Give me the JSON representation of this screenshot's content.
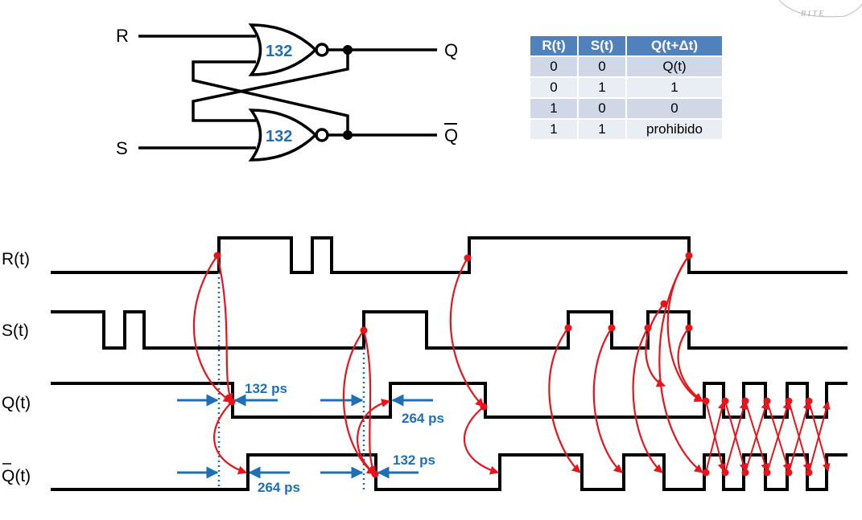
{
  "latch": {
    "input_r": "R",
    "input_s": "S",
    "output_q": "Q",
    "output_qbar": "Q",
    "gate_top_delay": "132",
    "gate_bottom_delay": "132"
  },
  "truth_table": {
    "headers": [
      "R(t)",
      "S(t)",
      "Q(t+Δt)"
    ],
    "rows": [
      [
        "0",
        "0",
        "Q(t)"
      ],
      [
        "0",
        "1",
        "1"
      ],
      [
        "1",
        "0",
        "0"
      ],
      [
        "1",
        "1",
        "prohibido"
      ]
    ]
  },
  "timing": {
    "signals": [
      "R(t)",
      "S(t)",
      "Q(t)",
      "Q(t)"
    ],
    "annotations": {
      "q_fall_delay": "132 ps",
      "q_rise_delay": "264 ps",
      "qbar_rise_delay": "264 ps",
      "qbar_fall_delay": "132 ps"
    }
  },
  "colors": {
    "wire": "#000000",
    "gate_label": "#1e6fb5",
    "table_header": "#4f81bd",
    "causal_arrow": "#e8141c",
    "delay_marker": "#1e6fb5"
  }
}
